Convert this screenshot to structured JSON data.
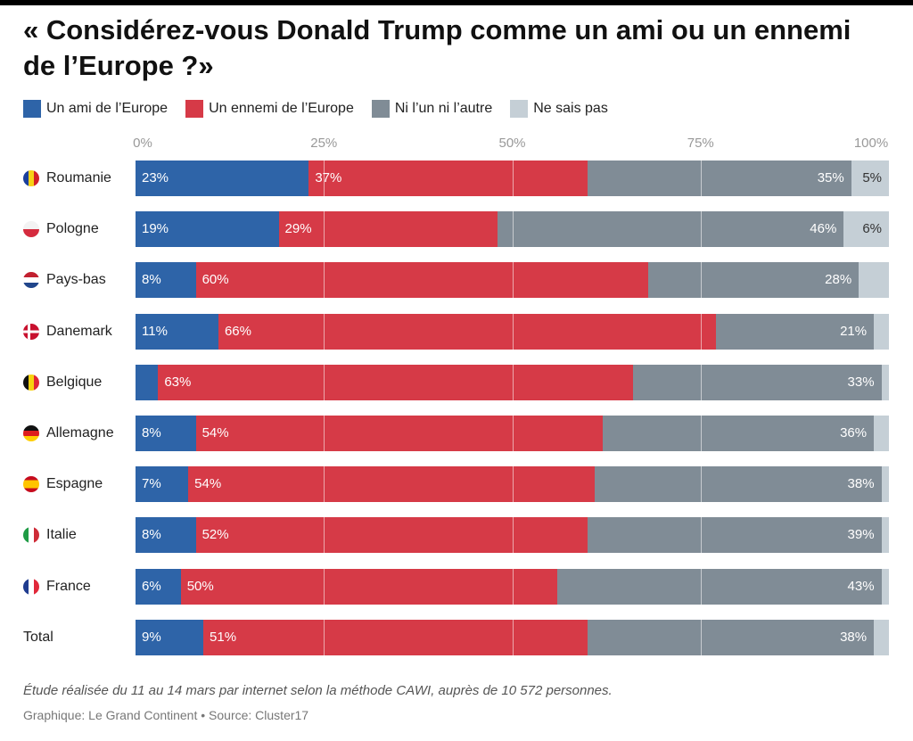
{
  "title": "« Considérez-vous Donald Trump comme un ami ou un ennemi de l’Europe ?»",
  "footnote": "Étude réalisée du 11 au 14 mars par internet selon la méthode CAWI, auprès de 10 572 personnes.",
  "credit": "Graphique: Le Grand Continent  • Source: Cluster17",
  "colors": {
    "ami": "#2e64a8",
    "ennemi": "#d63a47",
    "ni": "#808c96",
    "nsp": "#c5cfd6"
  },
  "chart_data": {
    "type": "bar",
    "orientation": "horizontal",
    "stacked": true,
    "xlim": [
      0,
      100
    ],
    "x_ticks": [
      "0%",
      "25%",
      "50%",
      "75%",
      "100%"
    ],
    "legend_position": "top-left",
    "categories": [
      "Roumanie",
      "Pologne",
      "Pays-bas",
      "Danemark",
      "Belgique",
      "Allemagne",
      "Espagne",
      "Italie",
      "France",
      "Total"
    ],
    "flags": [
      "romania",
      "poland",
      "netherlands",
      "denmark",
      "belgium",
      "germany",
      "spain",
      "italy",
      "france",
      ""
    ],
    "series": [
      {
        "name": "Un ami de l’Europe",
        "key": "ami",
        "values": [
          23,
          19,
          8,
          11,
          3,
          8,
          7,
          8,
          6,
          9
        ],
        "labels": [
          "23%",
          "19%",
          "8%",
          "11%",
          "",
          "8%",
          "7%",
          "8%",
          "6%",
          "9%"
        ]
      },
      {
        "name": "Un ennemi de l’Europe",
        "key": "ennemi",
        "values": [
          37,
          29,
          60,
          66,
          63,
          54,
          54,
          52,
          50,
          51
        ],
        "labels": [
          "37%",
          "29%",
          "60%",
          "66%",
          "63%",
          "54%",
          "54%",
          "52%",
          "50%",
          "51%"
        ]
      },
      {
        "name": "Ni l’un ni l’autre",
        "key": "ni",
        "values": [
          35,
          46,
          28,
          21,
          33,
          36,
          38,
          39,
          43,
          38
        ],
        "labels": [
          "35%",
          "46%",
          "28%",
          "21%",
          "33%",
          "36%",
          "38%",
          "39%",
          "43%",
          "38%"
        ]
      },
      {
        "name": "Ne sais pas",
        "key": "nsp",
        "values": [
          5,
          6,
          4,
          2,
          1,
          2,
          1,
          1,
          1,
          2
        ],
        "labels": [
          "5%",
          "6%",
          "",
          "",
          "",
          "",
          "",
          "",
          "",
          ""
        ]
      }
    ]
  }
}
